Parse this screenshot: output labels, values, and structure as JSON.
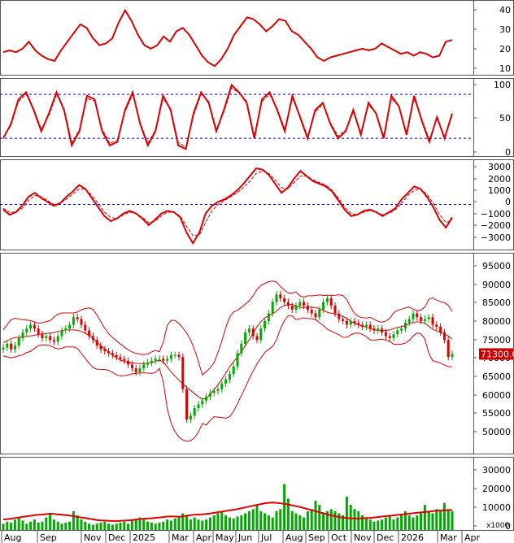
{
  "colors": {
    "line": "#dd0000",
    "up_candle": "#00aa00",
    "down_candle": "#dd0000",
    "volume_bar": "#00aa00",
    "reference_line": "#0000cc",
    "price_box": "#cc0000",
    "border": "#555555"
  },
  "chart_data": [
    {
      "type": "line",
      "panel": "indicator-1",
      "y_ticks": [
        "40",
        "30",
        "20",
        "10"
      ],
      "ylim": [
        5,
        48
      ],
      "series": [
        {
          "values": [
            18,
            19,
            18,
            20,
            24,
            19,
            16,
            14,
            13,
            19,
            24,
            29,
            34,
            32,
            26,
            22,
            23,
            26,
            35,
            42,
            36,
            28,
            22,
            20,
            22,
            27,
            24,
            30,
            32,
            28,
            22,
            16,
            12,
            10,
            14,
            20,
            28,
            33,
            38,
            37,
            34,
            30,
            33,
            37,
            36,
            30,
            28,
            24,
            20,
            15,
            13,
            15,
            16,
            17,
            18,
            19,
            20,
            19,
            20,
            23,
            21,
            19,
            17,
            18,
            16,
            18,
            17,
            15,
            16,
            24,
            25
          ]
        }
      ]
    },
    {
      "type": "line",
      "panel": "indicator-2",
      "y_ticks": [
        "100",
        "50",
        "0"
      ],
      "ylim": [
        -5,
        105
      ],
      "reference_lines": [
        82,
        20
      ],
      "series": [
        {
          "values": [
            20,
            40,
            75,
            85,
            60,
            30,
            55,
            85,
            60,
            10,
            30,
            80,
            75,
            30,
            10,
            15,
            60,
            85,
            40,
            10,
            30,
            80,
            60,
            10,
            5,
            55,
            85,
            70,
            30,
            60,
            95,
            85,
            70,
            20,
            75,
            85,
            60,
            30,
            80,
            50,
            20,
            60,
            70,
            40,
            20,
            30,
            60,
            25,
            70,
            55,
            20,
            80,
            65,
            25,
            80,
            45,
            15,
            50,
            20,
            55
          ]
        },
        {
          "values": [
            22,
            38,
            72,
            82,
            62,
            33,
            52,
            82,
            62,
            14,
            32,
            76,
            73,
            33,
            13,
            17,
            57,
            82,
            42,
            13,
            32,
            76,
            62,
            14,
            8,
            52,
            82,
            72,
            33,
            57,
            91,
            84,
            72,
            24,
            72,
            82,
            62,
            33,
            76,
            52,
            23,
            57,
            68,
            42,
            23,
            32,
            57,
            28,
            67,
            56,
            23,
            76,
            65,
            28,
            76,
            47,
            18,
            48,
            23,
            52
          ]
        }
      ]
    },
    {
      "type": "line",
      "panel": "indicator-3",
      "y_ticks": [
        "3000",
        "2000",
        "1000",
        "0",
        "−1000",
        "−2000",
        "−3000"
      ],
      "ylim": [
        -3500,
        3500
      ],
      "reference_lines": [
        0
      ],
      "series": [
        {
          "values": [
            -400,
            -800,
            -600,
            -100,
            600,
            900,
            500,
            200,
            -100,
            100,
            600,
            1000,
            1500,
            1200,
            500,
            -200,
            -900,
            -1300,
            -1100,
            -700,
            -500,
            -700,
            -1100,
            -1600,
            -1200,
            -700,
            -500,
            -600,
            -1000,
            -2200,
            -3000,
            -2200,
            -700,
            -100,
            200,
            400,
            700,
            1100,
            1600,
            2200,
            2800,
            2700,
            2300,
            1600,
            900,
            1300,
            2000,
            2600,
            2200,
            1800,
            1600,
            1400,
            1000,
            300,
            -400,
            -900,
            -800,
            -500,
            -400,
            -600,
            -900,
            -600,
            -300,
            400,
            900,
            1400,
            1200,
            600,
            -200,
            -1200,
            -1800,
            -1000
          ]
        },
        {
          "values": [
            -300,
            -600,
            -600,
            -300,
            300,
            700,
            600,
            300,
            0,
            100,
            400,
            800,
            1200,
            1200,
            700,
            100,
            -600,
            -1000,
            -1100,
            -800,
            -600,
            -700,
            -1000,
            -1400,
            -1300,
            -900,
            -600,
            -600,
            -900,
            -1700,
            -2400,
            -2400,
            -1400,
            -500,
            0,
            300,
            600,
            900,
            1300,
            1800,
            2400,
            2600,
            2400,
            1900,
            1300,
            1200,
            1700,
            2200,
            2200,
            1900,
            1700,
            1500,
            1100,
            500,
            -200,
            -700,
            -800,
            -600,
            -500,
            -600,
            -800,
            -700,
            -400,
            100,
            700,
            1100,
            1200,
            800,
            100,
            -800,
            -1400,
            -1200
          ]
        }
      ]
    },
    {
      "type": "candlestick",
      "panel": "price",
      "y_ticks": [
        "95000",
        "90000",
        "85000",
        "80000",
        "75000",
        "70000",
        "65000",
        "60000",
        "55000",
        "50000"
      ],
      "ylim": [
        45000,
        98000
      ],
      "last_price_label": "71300.0",
      "close": [
        73000,
        74000,
        72500,
        73500,
        75500,
        77000,
        78000,
        79000,
        78000,
        76500,
        75500,
        76000,
        75000,
        74500,
        76000,
        77500,
        78000,
        79000,
        81000,
        80500,
        79000,
        77500,
        76000,
        75000,
        73500,
        72500,
        72000,
        71500,
        71000,
        70500,
        70000,
        69500,
        68500,
        67500,
        66500,
        67500,
        68500,
        69000,
        69500,
        70000,
        70000,
        69500,
        70000,
        71000,
        71000,
        70500,
        62000,
        54000,
        55000,
        57000,
        58000,
        59000,
        60000,
        61000,
        61500,
        62000,
        63500,
        64500,
        66000,
        68000,
        71500,
        74000,
        77000,
        78000,
        76000,
        75000,
        78000,
        80000,
        82000,
        85000,
        87000,
        86000,
        85000,
        84000,
        83000,
        84000,
        85000,
        84000,
        83000,
        82000,
        81000,
        83000,
        85000,
        86000,
        84000,
        82000,
        80500,
        80000,
        79000,
        80000,
        79500,
        79000,
        78500,
        79000,
        78000,
        77500,
        78000,
        77000,
        76000,
        75500,
        76500,
        77500,
        78000,
        79500,
        80500,
        82000,
        81000,
        80000,
        80500,
        81000,
        79000,
        78500,
        77000,
        75000,
        70500,
        71300
      ]
    },
    {
      "type": "bar",
      "panel": "volume",
      "y_ticks": [
        "30000",
        "20000",
        "10000",
        "0"
      ],
      "ylim": [
        0,
        35000
      ],
      "unit_label": "x1000",
      "values": [
        3000,
        4000,
        3500,
        5000,
        6000,
        4500,
        3000,
        4000,
        5000,
        3500,
        4000,
        6000,
        8000,
        5000,
        4000,
        3000,
        3500,
        4000,
        9000,
        7000,
        5000,
        4000,
        3000,
        2500,
        3000,
        3500,
        4000,
        3000,
        2500,
        3000,
        3500,
        4000,
        3000,
        4500,
        5000,
        6000,
        5000,
        4000,
        3500,
        3000,
        3500,
        4000,
        5000,
        4500,
        5500,
        6000,
        8000,
        7000,
        5000,
        6000,
        5000,
        4500,
        5000,
        6000,
        7000,
        8000,
        9000,
        7000,
        6000,
        5500,
        6500,
        7000,
        8000,
        9000,
        10000,
        12000,
        9000,
        8000,
        7000,
        6000,
        9000,
        10000,
        22000,
        15000,
        9000,
        8000,
        7000,
        6000,
        9000,
        10000,
        14000,
        12000,
        8000,
        9000,
        10000,
        9000,
        8000,
        7000,
        16000,
        12000,
        10000,
        9000,
        7000,
        6000,
        5000,
        4000,
        4500,
        5000,
        6000,
        7000,
        5000,
        6000,
        7000,
        9000,
        7000,
        6000,
        7000,
        8000,
        12000,
        9000,
        8000,
        10000,
        9000,
        13000,
        10000,
        9000
      ],
      "ma_values": [
        5000,
        5200,
        5400,
        5700,
        6000,
        6300,
        6500,
        6800,
        7100,
        7300,
        7400,
        7600,
        7800,
        7700,
        7500,
        7300,
        7100,
        6900,
        6600,
        6300,
        6000,
        5700,
        5400,
        5100,
        4800,
        4600,
        4500,
        4400,
        4300,
        4300,
        4400,
        4500,
        4600,
        4800,
        5000,
        5200,
        5400,
        5500,
        5600,
        5800,
        6000,
        6200,
        6400,
        6500,
        6400,
        6300,
        6500,
        6800,
        7100,
        7300,
        7400,
        7500,
        7700,
        7900,
        8200,
        8500,
        8800,
        9100,
        9400,
        9700,
        10000,
        10400,
        10800,
        11200,
        11600,
        12000,
        12400,
        12800,
        13000,
        13100,
        13000,
        12800,
        12500,
        12200,
        11800,
        11400,
        11000,
        10500,
        10000,
        9500,
        9000,
        8500,
        8000,
        7500,
        7000,
        6600,
        6200,
        5900,
        5700,
        5600,
        5500,
        5500,
        5600,
        5700,
        5800,
        6000,
        6200,
        6400,
        6600,
        6800,
        7000,
        7200,
        7400,
        7600,
        7800,
        8000,
        8200,
        8400,
        8600,
        8800,
        9000,
        9200,
        9300,
        9400,
        9500,
        9600
      ]
    }
  ],
  "x_axis": {
    "months": [
      "Aug",
      "Sep",
      "Nov",
      "Dec",
      "2025",
      "Mar",
      "Apr",
      "May",
      "Jun",
      "Jul",
      "Aug",
      "Sep",
      "Oct",
      "Nov",
      "Dec",
      "2026",
      "Mar",
      "Apr"
    ]
  }
}
